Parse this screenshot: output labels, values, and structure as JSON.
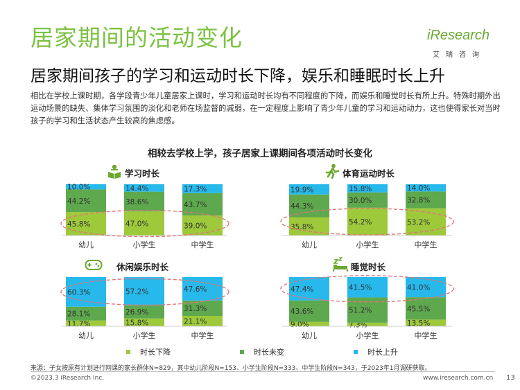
{
  "header": {
    "title": "居家期间的活动变化",
    "subtitle": "居家期间孩子的学习和运动时长下降，娱乐和睡眠时长上升",
    "intro": "相比在学校上课时期，各学段青少年儿童居家上课时，学习和运动时长均有不同程度的下降，而娱乐和睡觉时长有所上升。特殊时期外出运动场景的缺失、集体学习氛围的淡化和老师在场监督的减弱，在一定程度上影响了青少年儿童的学习和运动动力，这也使得家长对当时孩子的学习和生活状态产生较高的焦虑感。"
  },
  "logo": {
    "text": "iResearch",
    "sub": "艾瑞咨询"
  },
  "chart_title": "相较去学校上学，孩子居家上课期间各项活动时长变化",
  "colors": {
    "decrease": "#9dc93b",
    "unchanged": "#5ea84d",
    "increase": "#27b9ec",
    "highlight": "#e5737b"
  },
  "legend": [
    "时长下降",
    "时长未变",
    "时长上升"
  ],
  "chart_data": [
    {
      "type": "bar",
      "stacked": true,
      "normalized": true,
      "title": "学习时长",
      "icon": "study-icon",
      "categories": [
        "幼儿",
        "小学生",
        "中学生"
      ],
      "series": [
        {
          "name": "时长下降",
          "values": [
            45.8,
            47.0,
            39.0
          ],
          "labels": [
            "45.8%",
            "47.0%",
            "39.0%"
          ]
        },
        {
          "name": "时长未变",
          "values": [
            44.2,
            38.6,
            43.7
          ],
          "labels": [
            "44.2%",
            "38.6%",
            "43.7%"
          ]
        },
        {
          "name": "时长上升",
          "values": [
            10.0,
            14.4,
            17.3
          ],
          "labels": [
            "10.0%",
            "14.4%",
            "17.3%"
          ]
        }
      ],
      "highlight_series": "时长下降",
      "ylim": [
        0,
        100
      ]
    },
    {
      "type": "bar",
      "stacked": true,
      "normalized": true,
      "title": "体育运动时长",
      "icon": "sports-icon",
      "categories": [
        "幼儿",
        "小学生",
        "中学生"
      ],
      "series": [
        {
          "name": "时长下降",
          "values": [
            35.8,
            54.2,
            53.2
          ],
          "labels": [
            "35.8%",
            "54.2%",
            "53.2%"
          ]
        },
        {
          "name": "时长未变",
          "values": [
            44.3,
            30.0,
            32.8
          ],
          "labels": [
            "44.3%",
            "30.0%",
            "32.8%"
          ]
        },
        {
          "name": "时长上升",
          "values": [
            19.9,
            15.8,
            14.0
          ],
          "labels": [
            "19.9%",
            "15.8%",
            "14.0%"
          ]
        }
      ],
      "highlight_series": "时长下降",
      "ylim": [
        0,
        100
      ]
    },
    {
      "type": "bar",
      "stacked": true,
      "normalized": true,
      "title": "休闲娱乐时长",
      "icon": "gamepad-icon",
      "categories": [
        "幼儿",
        "小学生",
        "中学生"
      ],
      "series": [
        {
          "name": "时长下降",
          "values": [
            11.7,
            15.8,
            21.1
          ],
          "labels": [
            "11.7%",
            "15.8%",
            "21.1%"
          ]
        },
        {
          "name": "时长未变",
          "values": [
            28.1,
            26.9,
            31.3
          ],
          "labels": [
            "28.1%",
            "26.9%",
            "31.3%"
          ]
        },
        {
          "name": "时长上升",
          "values": [
            60.3,
            57.2,
            47.6
          ],
          "labels": [
            "60.3%",
            "57.2%",
            "47.6%"
          ]
        }
      ],
      "highlight_series": "时长上升",
      "ylim": [
        0,
        100
      ]
    },
    {
      "type": "bar",
      "stacked": true,
      "normalized": true,
      "title": "睡觉时长",
      "icon": "sleep-icon",
      "categories": [
        "幼儿",
        "小学生",
        "中学生"
      ],
      "series": [
        {
          "name": "时长下降",
          "values": [
            9.0,
            7.3,
            13.5
          ],
          "labels": [
            "9.0%",
            "7.3%",
            "13.5%"
          ]
        },
        {
          "name": "时长未变",
          "values": [
            43.6,
            51.2,
            45.5
          ],
          "labels": [
            "43.6%",
            "51.2%",
            "45.5%"
          ]
        },
        {
          "name": "时长上升",
          "values": [
            47.4,
            41.5,
            41.0
          ],
          "labels": [
            "47.4%",
            "41.5%",
            "41.0%"
          ]
        }
      ],
      "highlight_series": "时长上升",
      "ylim": [
        0,
        100
      ]
    }
  ],
  "footer": {
    "source": "来源：子女按原有计划进行网课的家长群体N=829，其中幼儿阶段N=153、小学生阶段N=333、中学生阶段N=343，于2023年1月调研获取。",
    "copyright": "©2023.3 iResearch Inc.",
    "website": "www.iresearch.com.cn",
    "page_number": "13"
  }
}
